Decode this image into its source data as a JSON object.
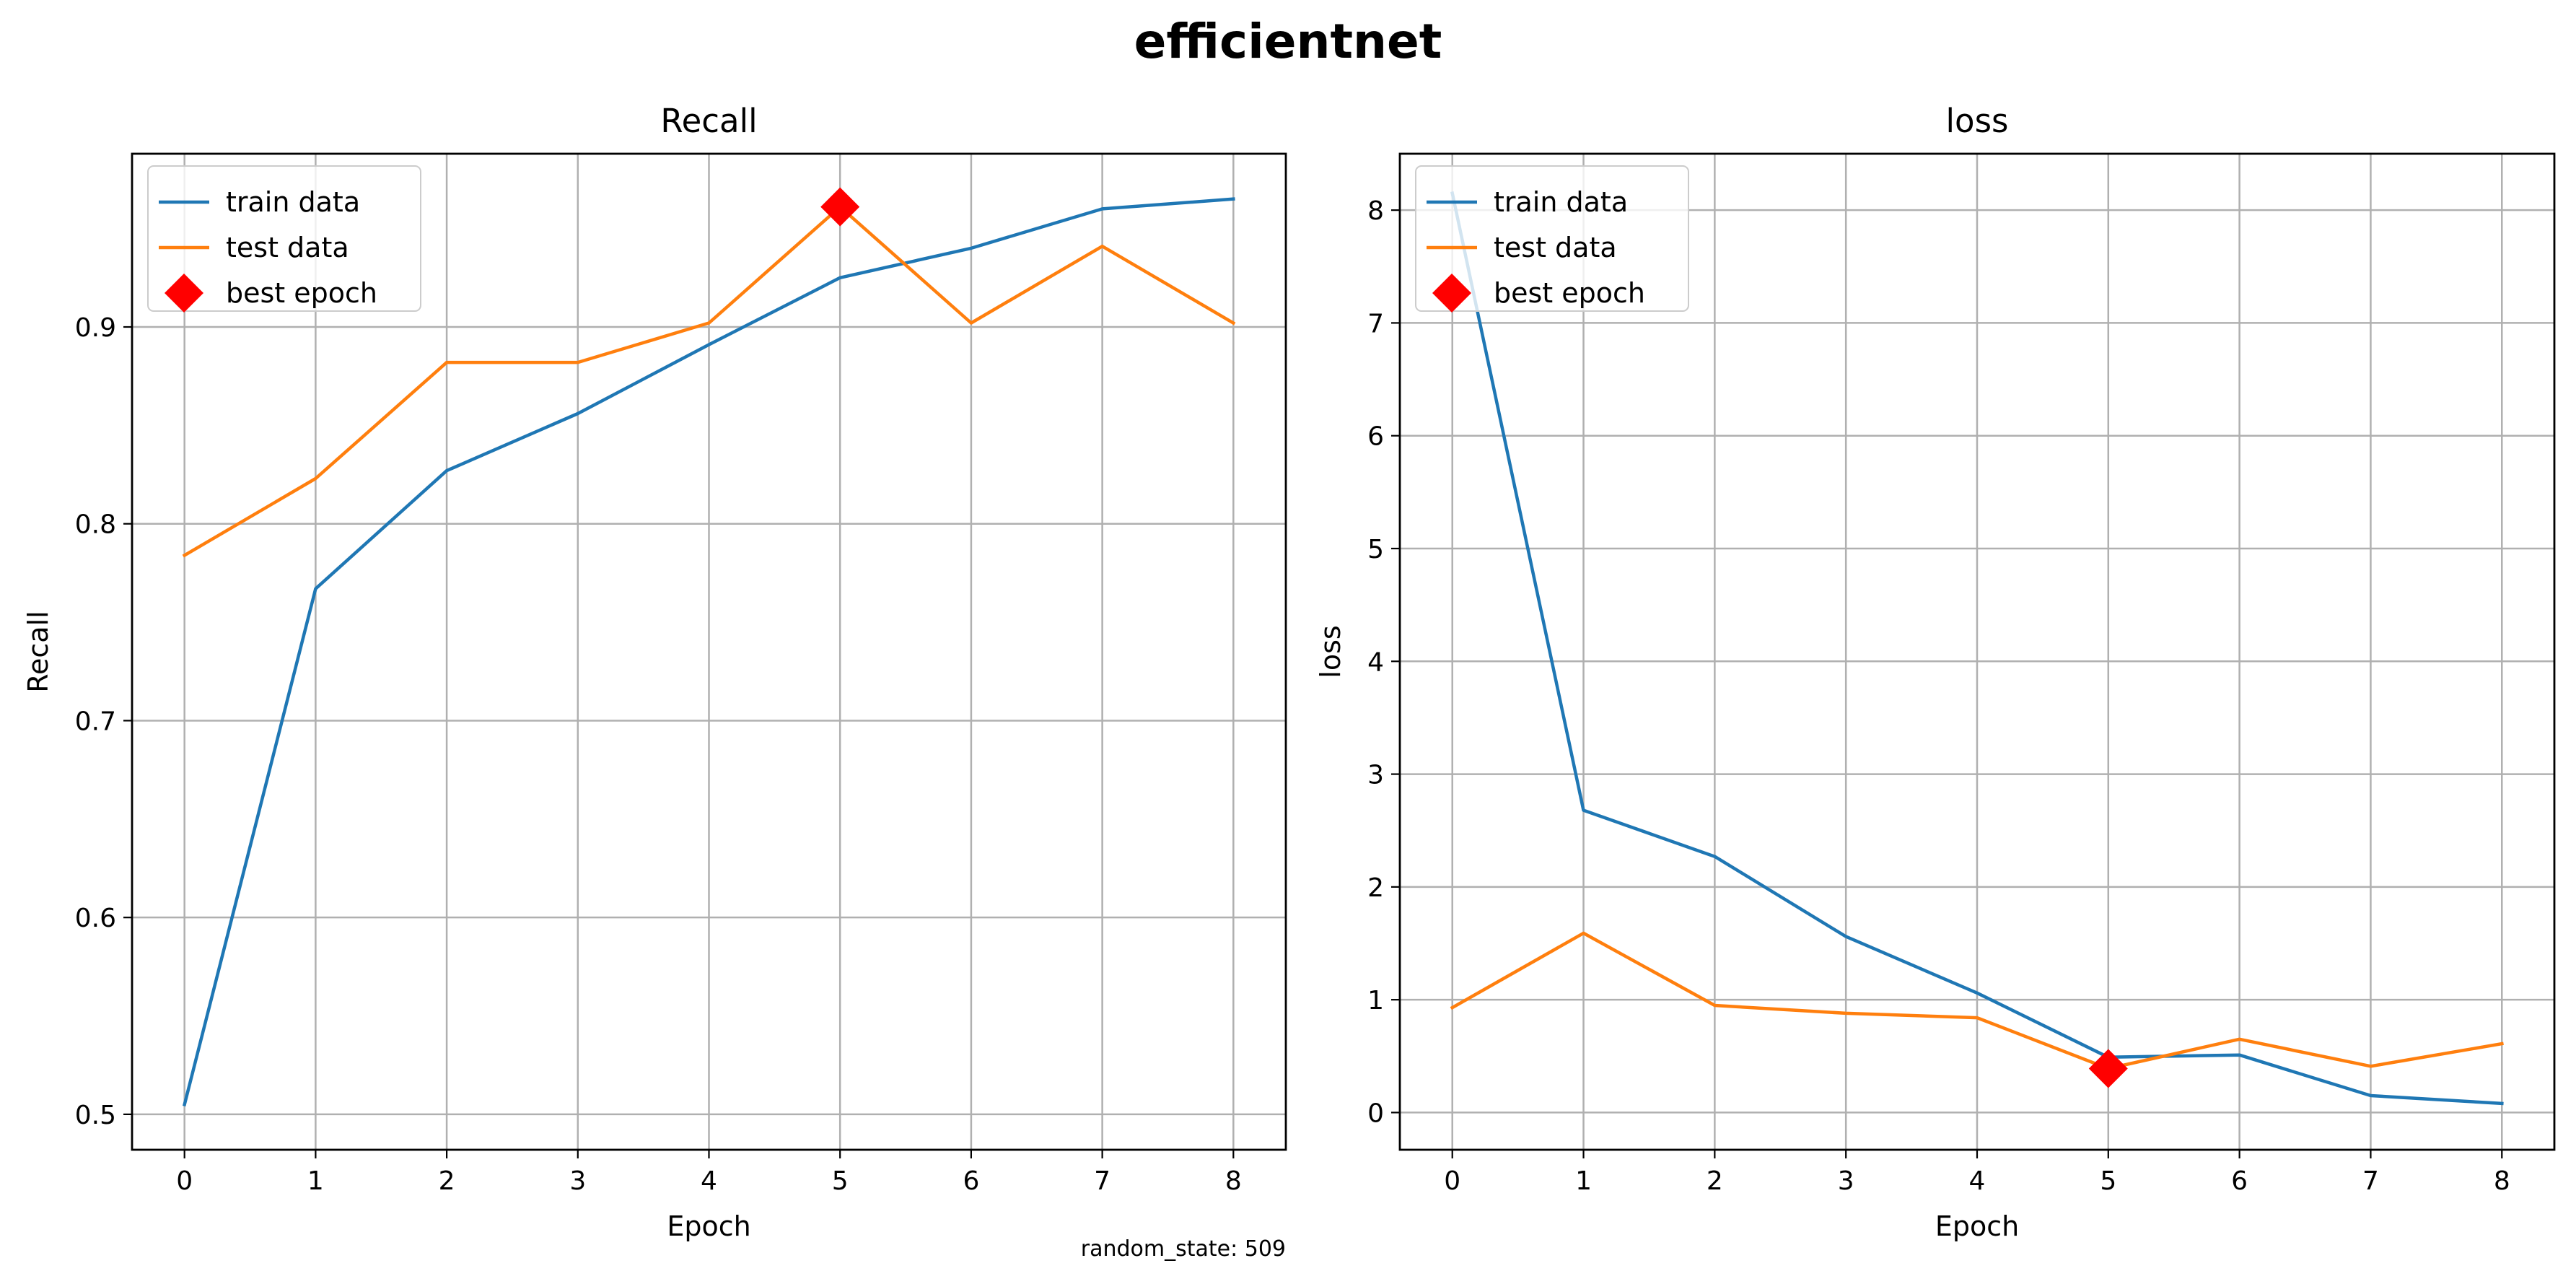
{
  "suptitle": "efficientnet",
  "footnote": "random_state: 509",
  "chart_data": [
    {
      "type": "line",
      "title": "Recall",
      "xlabel": "Epoch",
      "ylabel": "Recall",
      "x": [
        0,
        1,
        2,
        3,
        4,
        5,
        6,
        7,
        8
      ],
      "xlim": [
        -0.4,
        8.4
      ],
      "ylim": [
        0.482,
        0.988
      ],
      "xticks": [
        "0",
        "1",
        "2",
        "3",
        "4",
        "5",
        "6",
        "7",
        "8"
      ],
      "yticks": [
        {
          "value": 0.5,
          "label": "0.5"
        },
        {
          "value": 0.6,
          "label": "0.6"
        },
        {
          "value": 0.7,
          "label": "0.7"
        },
        {
          "value": 0.8,
          "label": "0.8"
        },
        {
          "value": 0.9,
          "label": "0.9"
        }
      ],
      "grid": true,
      "legend_position": "top-left",
      "series": [
        {
          "name": "train data",
          "color": "#1f77b4",
          "values": [
            0.505,
            0.767,
            0.827,
            0.856,
            0.891,
            0.925,
            0.94,
            0.96,
            0.965
          ]
        },
        {
          "name": "test data",
          "color": "#ff7f0e",
          "values": [
            0.784,
            0.823,
            0.882,
            0.882,
            0.902,
            0.961,
            0.902,
            0.941,
            0.902
          ]
        }
      ],
      "best_epoch": {
        "name": "best epoch",
        "color": "#ff0000",
        "x": 5,
        "y": 0.961
      }
    },
    {
      "type": "line",
      "title": "loss",
      "xlabel": "Epoch",
      "ylabel": "loss",
      "x": [
        0,
        1,
        2,
        3,
        4,
        5,
        6,
        7,
        8
      ],
      "xlim": [
        -0.4,
        8.4
      ],
      "ylim": [
        -0.33,
        8.5
      ],
      "xticks": [
        "0",
        "1",
        "2",
        "3",
        "4",
        "5",
        "6",
        "7",
        "8"
      ],
      "yticks": [
        {
          "value": 0,
          "label": "0"
        },
        {
          "value": 1,
          "label": "1"
        },
        {
          "value": 2,
          "label": "2"
        },
        {
          "value": 3,
          "label": "3"
        },
        {
          "value": 4,
          "label": "4"
        },
        {
          "value": 5,
          "label": "5"
        },
        {
          "value": 6,
          "label": "6"
        },
        {
          "value": 7,
          "label": "7"
        },
        {
          "value": 8,
          "label": "8"
        }
      ],
      "grid": true,
      "legend_position": "top-left",
      "series": [
        {
          "name": "train data",
          "color": "#1f77b4",
          "values": [
            8.15,
            2.68,
            2.27,
            1.56,
            1.06,
            0.49,
            0.51,
            0.15,
            0.08
          ]
        },
        {
          "name": "test data",
          "color": "#ff7f0e",
          "values": [
            0.93,
            1.59,
            0.95,
            0.88,
            0.84,
            0.39,
            0.65,
            0.41,
            0.61
          ]
        }
      ],
      "best_epoch": {
        "name": "best epoch",
        "color": "#ff0000",
        "x": 5,
        "y": 0.39
      }
    }
  ]
}
